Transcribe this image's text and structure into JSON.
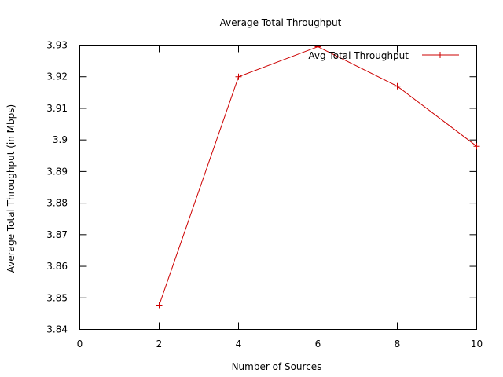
{
  "chart_data": {
    "type": "line",
    "title": "Average Total Throughput",
    "xlabel": "Number of Sources",
    "ylabel": "Average Total Throughput (in Mbps)",
    "xlim": [
      0,
      10
    ],
    "ylim": [
      3.84,
      3.93
    ],
    "x_ticks": [
      0,
      2,
      4,
      6,
      8,
      10
    ],
    "y_ticks": [
      3.84,
      3.85,
      3.86,
      3.87,
      3.88,
      3.89,
      3.9,
      3.91,
      3.92,
      3.93
    ],
    "x_tick_labels": [
      "0",
      "2",
      "4",
      "6",
      "8",
      "10"
    ],
    "y_tick_labels": [
      "3.84",
      "3.85",
      "3.86",
      "3.87",
      "3.88",
      "3.89",
      "3.9",
      "3.91",
      "3.92",
      "3.93"
    ],
    "grid": false,
    "legend_position": "top-right",
    "series": [
      {
        "name": "Avg Total Throughput",
        "color": "#cc0000",
        "marker": "plus",
        "x": [
          2,
          4,
          6,
          8,
          10
        ],
        "y": [
          3.8477,
          3.92,
          3.9295,
          3.917,
          3.898
        ]
      }
    ]
  }
}
